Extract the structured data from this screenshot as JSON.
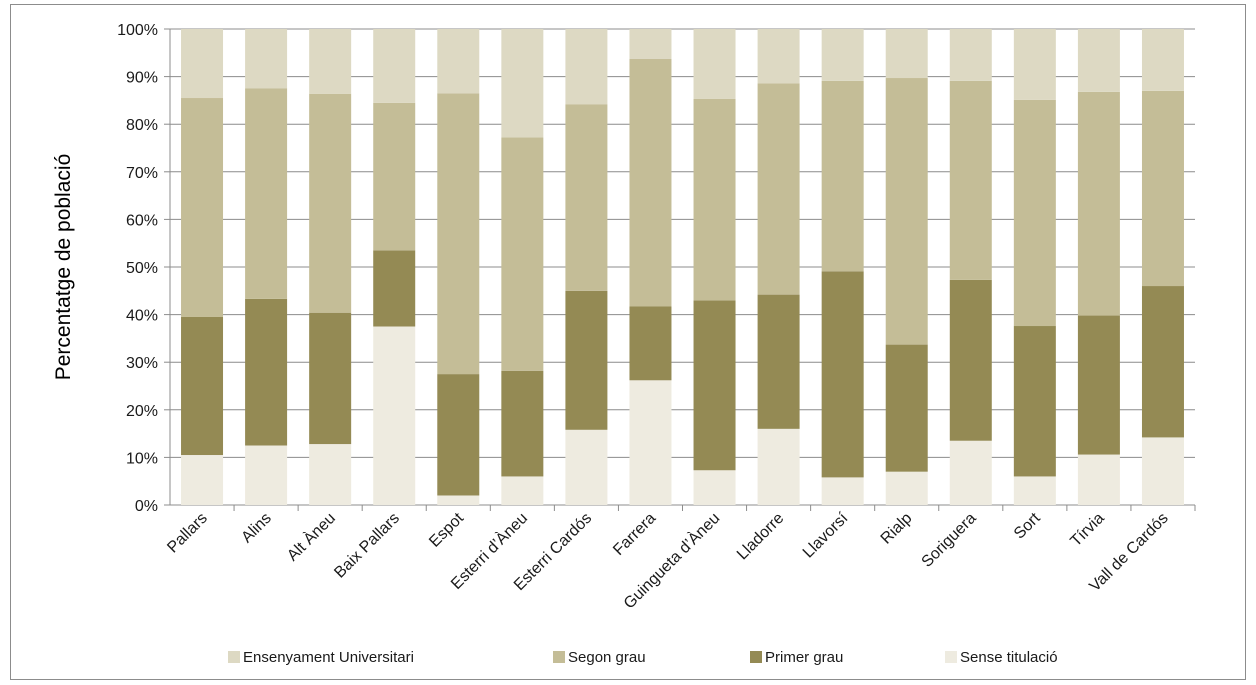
{
  "chart_data": {
    "type": "bar",
    "stacked": true,
    "percent_stacked": true,
    "ylabel": "Percentatge de població",
    "xlabel": "",
    "title": "",
    "ylim": [
      0,
      100
    ],
    "y_ticks": [
      "0%",
      "10%",
      "20%",
      "30%",
      "40%",
      "50%",
      "60%",
      "70%",
      "80%",
      "90%",
      "100%"
    ],
    "grid": true,
    "legend_position": "bottom",
    "categories": [
      "Pallars",
      "Alins",
      "Alt Àneu",
      "Baix Pallars",
      "Espot",
      "Esterri d’Àneu",
      "Esterri Cardós",
      "Farrera",
      "Guingueta d’Àneu",
      "Lladorre",
      "Llavorsí",
      "Rialp",
      "Soriguera",
      "Sort",
      "Tírvia",
      "Vall de Cardós"
    ],
    "series": [
      {
        "name": "Sense titulació",
        "color": "#eeebe0",
        "values": [
          10.5,
          12.5,
          12.8,
          37.5,
          2.0,
          6.0,
          15.8,
          26.2,
          7.3,
          16.0,
          5.8,
          7.0,
          13.5,
          6.0,
          10.6,
          14.2
        ]
      },
      {
        "name": "Primer grau",
        "color": "#948a54",
        "values": [
          29.0,
          30.8,
          27.6,
          16.0,
          25.5,
          22.2,
          29.2,
          15.5,
          35.7,
          28.2,
          43.3,
          26.7,
          33.8,
          31.6,
          29.2,
          31.8
        ]
      },
      {
        "name": "Segon grau",
        "color": "#c4bd97",
        "values": [
          46.0,
          44.2,
          46.0,
          31.0,
          59.0,
          49.0,
          39.2,
          52.0,
          42.3,
          44.4,
          40.0,
          56.0,
          41.8,
          47.5,
          47.0,
          41.0
        ]
      },
      {
        "name": "Ensenyament Universitari",
        "color": "#ddd9c3",
        "values": [
          14.5,
          12.5,
          13.6,
          15.5,
          13.5,
          22.8,
          15.8,
          6.3,
          14.7,
          11.4,
          10.9,
          10.3,
          10.9,
          14.9,
          13.2,
          13.0
        ]
      }
    ],
    "legend_order": [
      "Ensenyament Universitari",
      "Segon grau",
      "Primer grau",
      "Sense titulació"
    ]
  }
}
